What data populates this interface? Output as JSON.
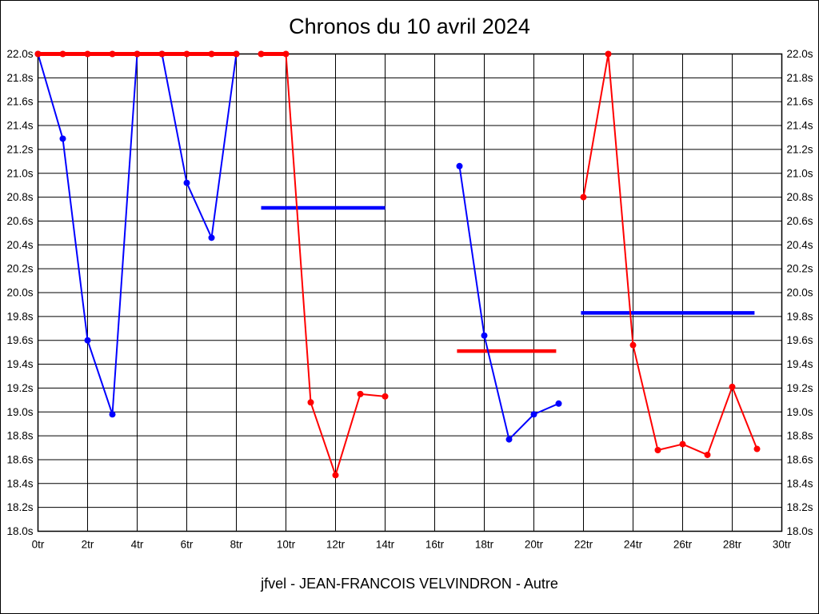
{
  "page": {
    "title": "Chronos du 10 avril 2024",
    "footer": "jfvel - JEAN-FRANCOIS VELVINDRON - Autre"
  },
  "chart_data": {
    "type": "line",
    "title": "Chronos du 10 avril 2024",
    "footer": "jfvel - JEAN-FRANCOIS VELVINDRON - Autre",
    "x_unit": "tr",
    "y_unit": "s",
    "xlim": [
      0,
      30
    ],
    "ylim": [
      18.0,
      22.0
    ],
    "x_tick_step": 2,
    "y_tick_step": 0.2,
    "grid": true,
    "y_axis_labels_both_sides": true,
    "x_tick_labels": [
      "0tr",
      "2tr",
      "4tr",
      "6tr",
      "8tr",
      "10tr",
      "12tr",
      "14tr",
      "16tr",
      "18tr",
      "20tr",
      "22tr",
      "24tr",
      "26tr",
      "28tr",
      "30tr"
    ],
    "y_tick_labels": [
      "18.0s",
      "18.2s",
      "18.4s",
      "18.6s",
      "18.8s",
      "19.0s",
      "19.2s",
      "19.4s",
      "19.6s",
      "19.8s",
      "20.0s",
      "20.2s",
      "20.4s",
      "20.6s",
      "20.8s",
      "21.0s",
      "21.2s",
      "21.4s",
      "21.6s",
      "21.8s",
      "22.0s"
    ],
    "colors": {
      "red": "#ff0000",
      "blue": "#0000ff",
      "grid": "#000000",
      "background": "#ffffff"
    },
    "series": [
      {
        "name": "blue-stint-laps-0-8",
        "color": "#0000ff",
        "width": 2,
        "marker_radius": 4,
        "x": [
          0,
          1,
          2,
          3,
          4,
          5,
          6,
          7,
          8
        ],
        "y": [
          22.0,
          21.29,
          19.6,
          18.98,
          22.0,
          22.0,
          20.92,
          20.46,
          22.0
        ]
      },
      {
        "name": "red-stint-laps-0-8-capped-at-22s",
        "color": "#ff0000",
        "width": 5,
        "marker_radius": 4,
        "x": [
          0,
          1,
          2,
          3,
          4,
          5,
          6,
          7,
          8
        ],
        "y": [
          22.0,
          22.0,
          22.0,
          22.0,
          22.0,
          22.0,
          22.0,
          22.0,
          22.0
        ]
      },
      {
        "name": "red-stint-laps-9-14",
        "color": "#ff0000",
        "width": 2,
        "marker_radius": 4,
        "x": [
          9,
          10,
          11,
          12,
          13,
          14
        ],
        "y": [
          22.0,
          22.0,
          19.08,
          18.47,
          19.15,
          19.13
        ]
      },
      {
        "name": "blue-stint-laps-17-21",
        "color": "#0000ff",
        "width": 2,
        "marker_radius": 4,
        "x": [
          17,
          18,
          19,
          20,
          21
        ],
        "y": [
          21.06,
          19.64,
          18.77,
          18.98,
          19.07
        ]
      },
      {
        "name": "red-stint-laps-22-29",
        "color": "#ff0000",
        "width": 2,
        "marker_radius": 4,
        "x": [
          22,
          23,
          24,
          25,
          26,
          27,
          28,
          29
        ],
        "y": [
          20.8,
          22.0,
          19.56,
          18.68,
          18.73,
          18.64,
          19.21,
          18.69
        ]
      }
    ],
    "reference_lines": [
      {
        "name": "red-capped-line-laps-9-10",
        "color": "#ff0000",
        "y": 22.0,
        "x_start": 9.0,
        "x_end": 10.0,
        "width": 5
      },
      {
        "name": "blue-average-line-laps-9-14",
        "color": "#0000ff",
        "y": 20.71,
        "x_start": 9.0,
        "x_end": 14.0,
        "width": 4.5
      },
      {
        "name": "red-average-line-laps-17-21",
        "color": "#ff0000",
        "y": 19.51,
        "x_start": 16.9,
        "x_end": 20.9,
        "width": 4.5
      },
      {
        "name": "blue-average-line-laps-22-29",
        "color": "#0000ff",
        "y": 19.83,
        "x_start": 21.9,
        "x_end": 28.9,
        "width": 4.5
      }
    ]
  }
}
